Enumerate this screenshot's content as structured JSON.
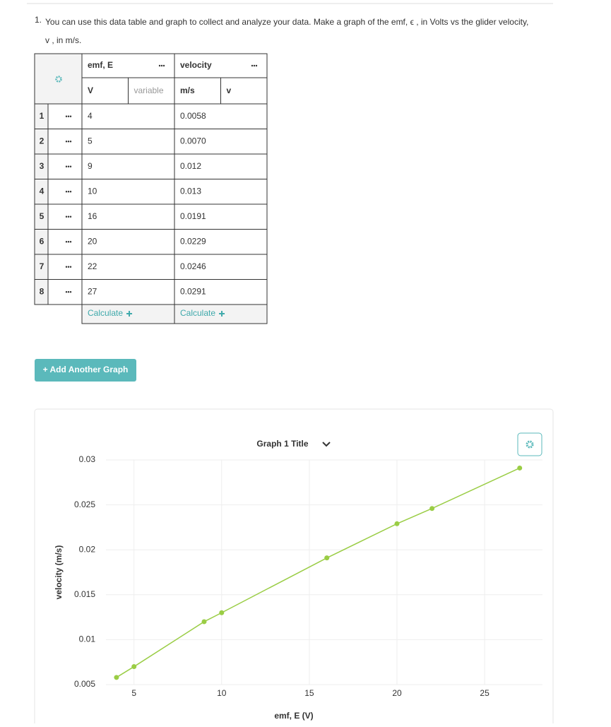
{
  "question": {
    "number": "1.",
    "line1": "You can use this data table and graph to collect and analyze your data. Make a graph of the emf, ϵ , in Volts vs the glider velocity,",
    "line2": "v , in m/s."
  },
  "table": {
    "columns": [
      {
        "name": "emf, E",
        "unit": "V",
        "variable": "variable",
        "calculate": "Calculate"
      },
      {
        "name": "velocity",
        "unit": "m/s",
        "variable": "v",
        "calculate": "Calculate"
      }
    ],
    "rows": [
      [
        "1",
        "4",
        "0.0058"
      ],
      [
        "2",
        "5",
        "0.0070"
      ],
      [
        "3",
        "9",
        "0.012"
      ],
      [
        "4",
        "10",
        "0.013"
      ],
      [
        "5",
        "16",
        "0.0191"
      ],
      [
        "6",
        "20",
        "0.0229"
      ],
      [
        "7",
        "22",
        "0.0246"
      ],
      [
        "8",
        "27",
        "0.0291"
      ]
    ]
  },
  "add_graph_button": "+ Add Another Graph",
  "chart_data": {
    "type": "line",
    "title": "Graph 1 Title",
    "x_label": "emf, E (V)",
    "y_label": "velocity (m/s)",
    "x": [
      4,
      5,
      9,
      10,
      16,
      20,
      22,
      27
    ],
    "values": [
      0.0058,
      0.007,
      0.012,
      0.013,
      0.0191,
      0.0229,
      0.0246,
      0.0291
    ],
    "color": "#9acd45",
    "xlim": [
      3.4,
      28.3
    ],
    "ylim": [
      0.005,
      0.03
    ],
    "xticks": [
      5,
      10,
      15,
      20,
      25
    ],
    "yticks": [
      0.005,
      0.01,
      0.015,
      0.02,
      0.025,
      0.03
    ],
    "grid": true
  }
}
